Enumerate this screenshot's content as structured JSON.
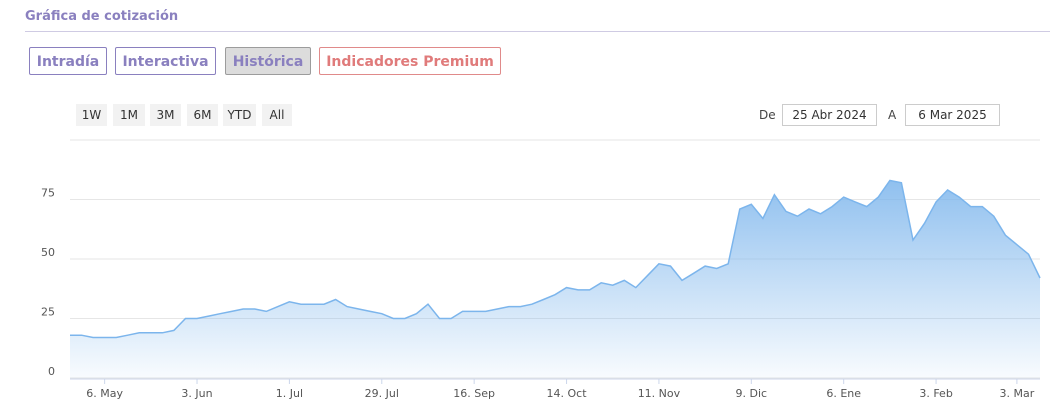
{
  "header": {
    "title": "Gráfica de cotización"
  },
  "tabs": [
    "Intradía",
    "Interactiva",
    "Histórica",
    "Indicadores Premium"
  ],
  "range_buttons": [
    "1W",
    "1M",
    "3M",
    "6M",
    "YTD",
    "All"
  ],
  "date_range": {
    "from_label": "De",
    "from": "25 Abr 2024",
    "to_label": "A",
    "to": "6 Mar 2025"
  },
  "chart_data": {
    "type": "area",
    "color": "#7cb5ec",
    "grid": true,
    "categories": [
      null,
      null,
      null,
      "6. May",
      null,
      null,
      null,
      null,
      null,
      null,
      null,
      "3. Jun",
      null,
      null,
      null,
      null,
      null,
      null,
      null,
      "1. Jul",
      null,
      null,
      null,
      null,
      null,
      null,
      null,
      "29. Jul",
      null,
      null,
      null,
      null,
      null,
      null,
      null,
      "16. Sep",
      null,
      null,
      null,
      null,
      null,
      null,
      null,
      "14. Oct",
      null,
      null,
      null,
      null,
      null,
      null,
      null,
      "11. Nov",
      null,
      null,
      null,
      null,
      null,
      null,
      null,
      "9. Dic",
      null,
      null,
      null,
      null,
      null,
      null,
      null,
      "6. Ene",
      null,
      null,
      null,
      null,
      null,
      null,
      null,
      "3. Feb",
      null,
      null,
      null,
      null,
      null,
      null,
      "3. Mar",
      null,
      null
    ],
    "values": [
      18,
      18,
      17,
      17,
      17,
      18,
      19,
      19,
      19,
      20,
      25,
      25,
      26,
      27,
      28,
      29,
      29,
      28,
      30,
      32,
      31,
      31,
      31,
      33,
      30,
      29,
      28,
      27,
      25,
      25,
      27,
      31,
      25,
      25,
      28,
      28,
      28,
      29,
      30,
      30,
      31,
      33,
      35,
      38,
      37,
      37,
      40,
      39,
      41,
      38,
      43,
      48,
      47,
      41,
      44,
      47,
      46,
      48,
      71,
      73,
      67,
      77,
      70,
      68,
      71,
      69,
      72,
      76,
      74,
      72,
      76,
      83,
      82,
      58,
      65,
      74,
      79,
      76,
      72,
      72,
      68,
      60,
      56,
      52,
      42
    ],
    "ylim": [
      0,
      100
    ],
    "yticks": [
      0,
      25,
      50,
      75
    ]
  }
}
